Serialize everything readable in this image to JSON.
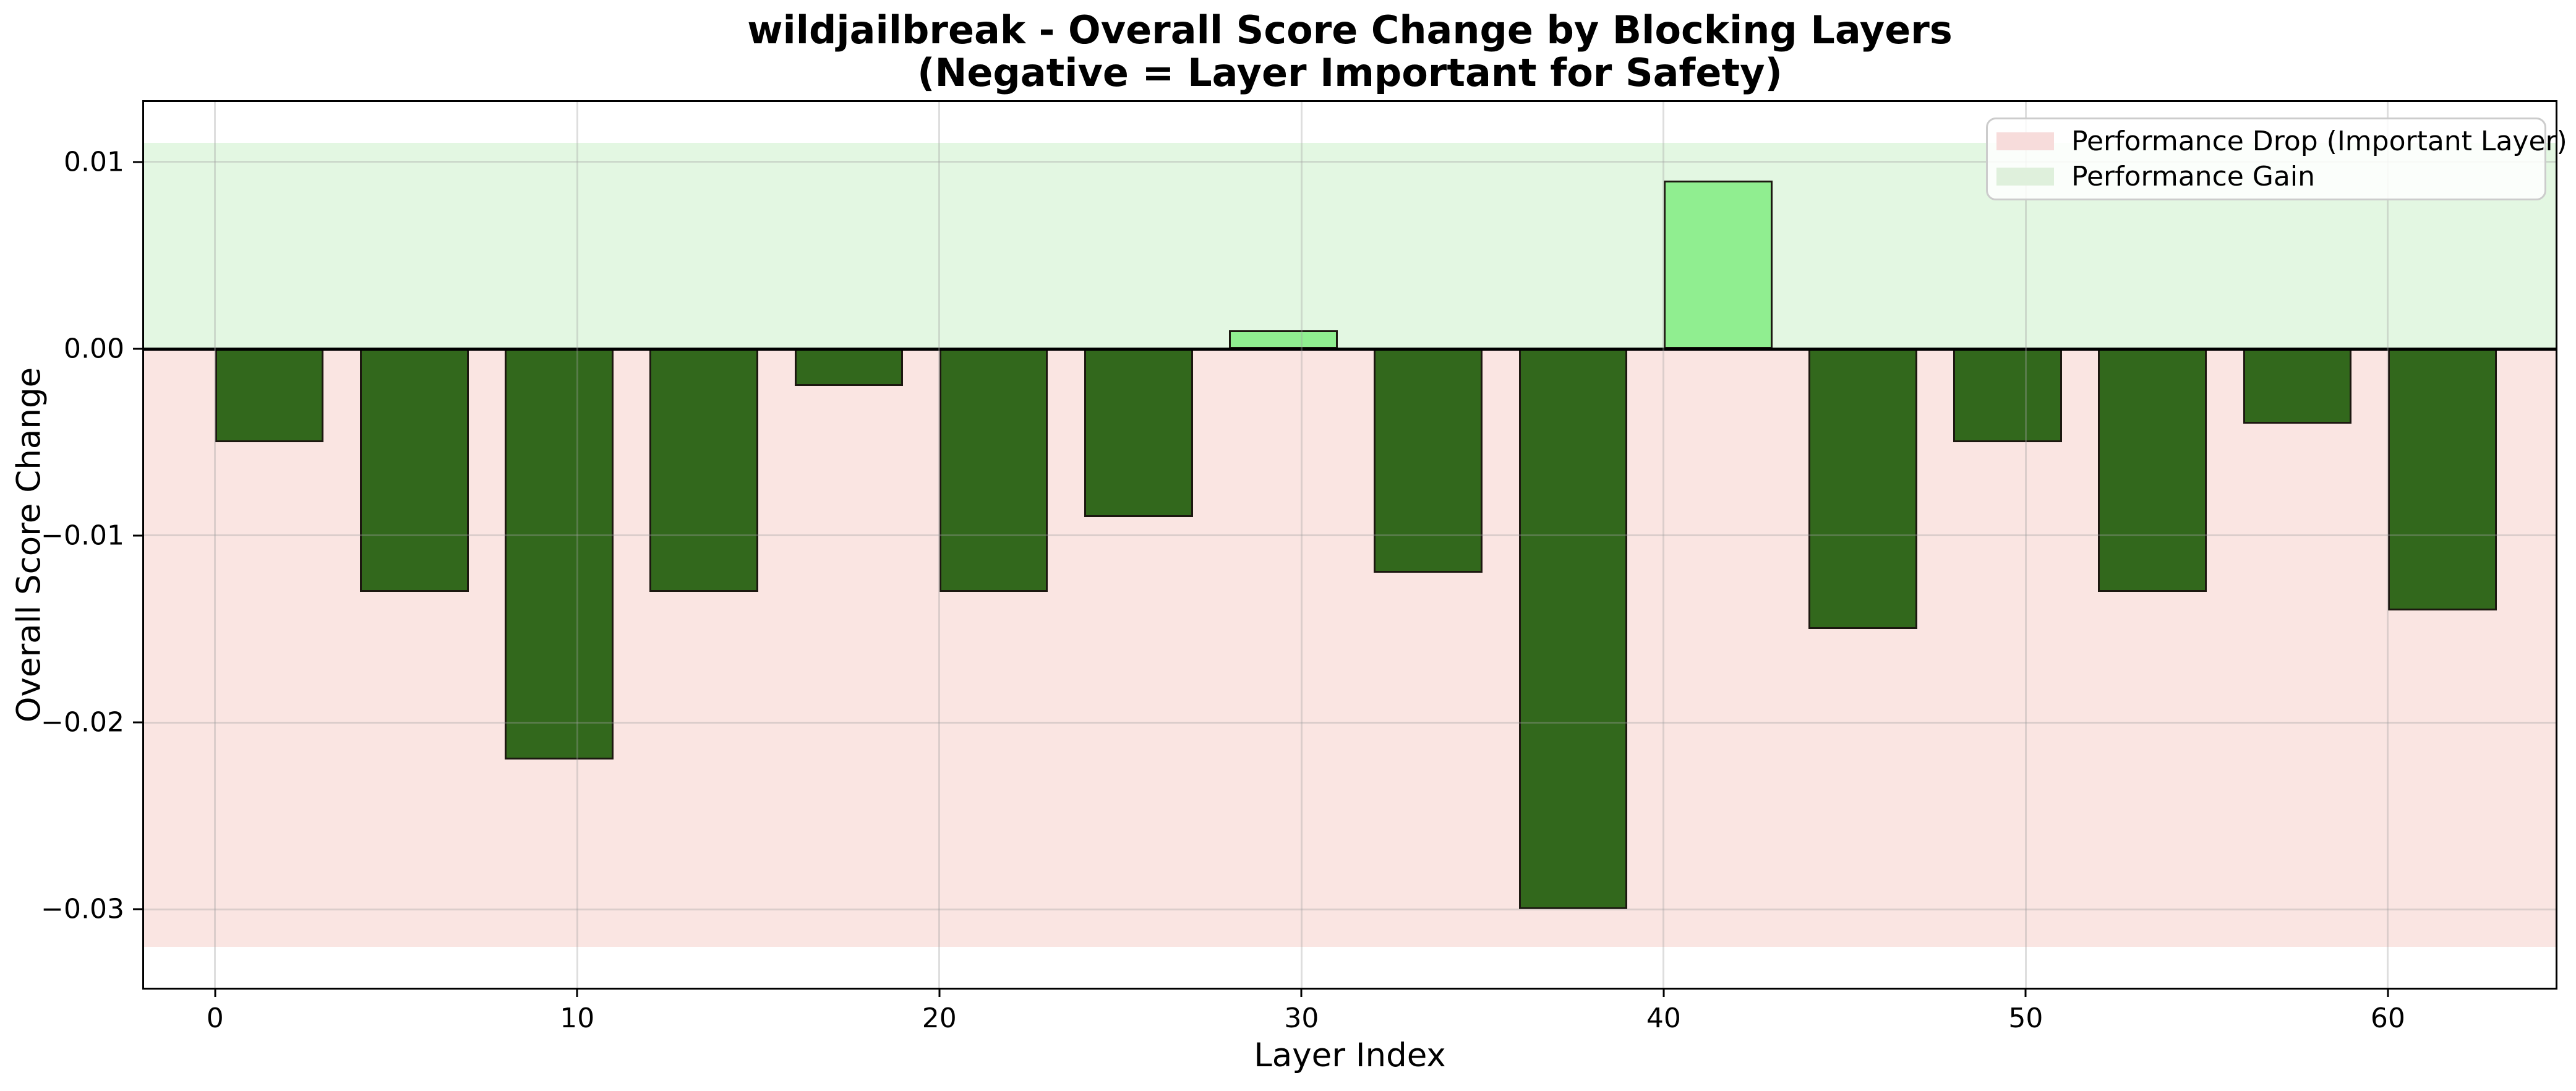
{
  "figure": {
    "title": "wildjailbreak - Overall Score Change by Blocking Layers\n(Negative = Layer Important for Safety)",
    "xlabel": "Layer Index",
    "ylabel": "Overall Score Change"
  },
  "legend": {
    "items": [
      {
        "label": "Performance Drop (Important Layer)",
        "color": "#f7dcdb"
      },
      {
        "label": "Performance Gain",
        "color": "#dff0dc"
      }
    ]
  },
  "chart_data": {
    "type": "bar",
    "title": "wildjailbreak - Overall Score Change by Blocking Layers\n(Negative = Layer Important for Safety)",
    "xlabel": "Layer Index",
    "ylabel": "Overall Score Change",
    "bar_left_edges": [
      0,
      4,
      8,
      12,
      16,
      20,
      24,
      28,
      32,
      36,
      40,
      44,
      48,
      52,
      56,
      60
    ],
    "bar_width_layers": 3,
    "values": [
      -0.005,
      -0.013,
      -0.022,
      -0.013,
      -0.002,
      -0.013,
      -0.009,
      0.001,
      -0.012,
      -0.03,
      0.009,
      -0.015,
      -0.005,
      -0.013,
      -0.004,
      -0.014
    ],
    "xlim": [
      -1.96,
      64.63
    ],
    "ylim": [
      -0.0342,
      0.0132
    ],
    "xticks": [
      0,
      10,
      20,
      30,
      40,
      50,
      60
    ],
    "yticks": [
      0.01,
      0.0,
      -0.01,
      -0.02,
      -0.03
    ],
    "ytick_labels": [
      "0.01",
      "0.00",
      "−0.01",
      "−0.02",
      "−0.03"
    ],
    "bands": [
      {
        "name": "performance-gain-band",
        "from": 0,
        "to": 0.011,
        "color": "#e3f7e2"
      },
      {
        "name": "performance-drop-band",
        "from": -0.032,
        "to": 0,
        "color": "#fae5e2"
      }
    ],
    "colors": {
      "bar_negative": "#32681c",
      "bar_positive": "#90ee90",
      "bar_edge": "#1c1810",
      "zero_line": "#000000",
      "grid": "rgba(160,160,160,0.35)"
    },
    "grid": true,
    "legend_position": "upper right"
  }
}
